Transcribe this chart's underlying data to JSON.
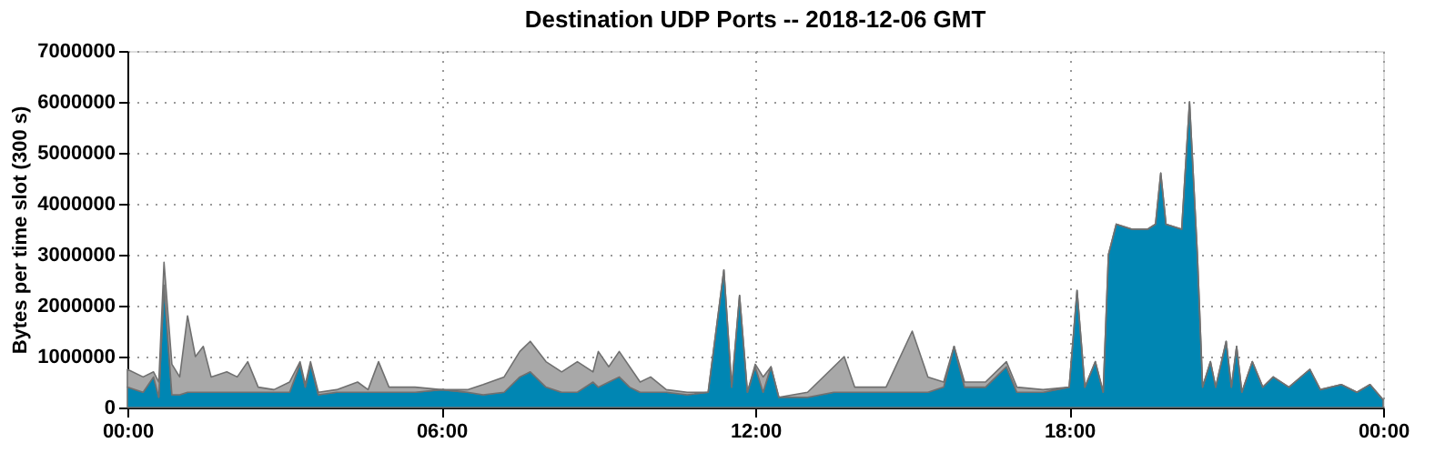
{
  "chart_data": {
    "type": "area",
    "title": "Destination UDP Ports -- 2018-12-06 GMT",
    "ylabel": "Bytes per time slot (300 s)",
    "stacked": true,
    "grid": true,
    "legend": false,
    "xlim": [
      0,
      24
    ],
    "xticks": [
      {
        "value": 0,
        "label": "00:00"
      },
      {
        "value": 6,
        "label": "06:00"
      },
      {
        "value": 12,
        "label": "12:00"
      },
      {
        "value": 18,
        "label": "18:00"
      },
      {
        "value": 24,
        "label": "00:00"
      }
    ],
    "ylim": [
      0,
      7000000
    ],
    "yticks": [
      0,
      1000000,
      2000000,
      3000000,
      4000000,
      5000000,
      6000000,
      7000000
    ],
    "x": [
      0,
      0.3,
      0.5,
      0.6,
      0.7,
      0.85,
      1.0,
      1.15,
      1.3,
      1.45,
      1.6,
      1.9,
      2.1,
      2.3,
      2.5,
      2.8,
      3.1,
      3.3,
      3.4,
      3.5,
      3.65,
      4.0,
      4.4,
      4.6,
      4.8,
      5.0,
      5.5,
      6.0,
      6.5,
      6.8,
      7.2,
      7.5,
      7.7,
      8.0,
      8.3,
      8.6,
      8.9,
      9.0,
      9.2,
      9.4,
      9.6,
      9.8,
      10.0,
      10.3,
      10.7,
      11.1,
      11.4,
      11.55,
      11.7,
      11.85,
      12.0,
      12.15,
      12.3,
      12.45,
      13.0,
      13.5,
      13.7,
      13.9,
      14.5,
      15.0,
      15.3,
      15.6,
      15.8,
      16.0,
      16.4,
      16.8,
      17.0,
      17.5,
      18.0,
      18.15,
      18.3,
      18.5,
      18.65,
      18.75,
      18.9,
      19.2,
      19.5,
      19.65,
      19.75,
      19.85,
      20.15,
      20.3,
      20.45,
      20.55,
      20.7,
      20.8,
      21.0,
      21.1,
      21.2,
      21.3,
      21.5,
      21.7,
      21.9,
      22.2,
      22.6,
      22.8,
      23.2,
      23.5,
      23.75,
      24.0
    ],
    "series": [
      {
        "color": "#0086b3",
        "values": [
          400000,
          300000,
          600000,
          200000,
          2400000,
          250000,
          250000,
          300000,
          300000,
          300000,
          300000,
          300000,
          300000,
          300000,
          300000,
          300000,
          300000,
          850000,
          400000,
          850000,
          250000,
          300000,
          300000,
          300000,
          300000,
          300000,
          300000,
          350000,
          300000,
          250000,
          300000,
          600000,
          700000,
          400000,
          300000,
          300000,
          500000,
          400000,
          500000,
          600000,
          400000,
          300000,
          300000,
          300000,
          250000,
          300000,
          2700000,
          400000,
          2200000,
          300000,
          800000,
          300000,
          800000,
          200000,
          200000,
          300000,
          300000,
          300000,
          300000,
          300000,
          300000,
          400000,
          1200000,
          400000,
          400000,
          800000,
          300000,
          300000,
          400000,
          2300000,
          400000,
          900000,
          300000,
          3000000,
          3600000,
          3500000,
          3500000,
          3600000,
          4600000,
          3600000,
          3500000,
          6000000,
          3000000,
          400000,
          900000,
          400000,
          1300000,
          400000,
          1200000,
          300000,
          900000,
          400000,
          600000,
          400000,
          750000,
          350000,
          450000,
          300000,
          450000,
          150000
        ]
      },
      {
        "color": "#a8a8a8",
        "values": [
          350000,
          300000,
          100000,
          300000,
          450000,
          600000,
          350000,
          1500000,
          700000,
          900000,
          300000,
          400000,
          300000,
          600000,
          100000,
          50000,
          200000,
          50000,
          50000,
          50000,
          50000,
          50000,
          200000,
          50000,
          600000,
          100000,
          100000,
          0,
          50000,
          200000,
          300000,
          500000,
          600000,
          500000,
          400000,
          600000,
          200000,
          700000,
          300000,
          500000,
          400000,
          200000,
          300000,
          50000,
          50000,
          0,
          0,
          0,
          0,
          0,
          50000,
          300000,
          0,
          0,
          100000,
          500000,
          700000,
          100000,
          100000,
          1200000,
          300000,
          100000,
          0,
          100000,
          100000,
          100000,
          100000,
          50000,
          0,
          0,
          0,
          0,
          0,
          0,
          0,
          0,
          0,
          0,
          0,
          0,
          0,
          0,
          0,
          0,
          0,
          0,
          0,
          0,
          0,
          0,
          0,
          0,
          0,
          0,
          0,
          0,
          0,
          0,
          0,
          0
        ]
      }
    ]
  }
}
